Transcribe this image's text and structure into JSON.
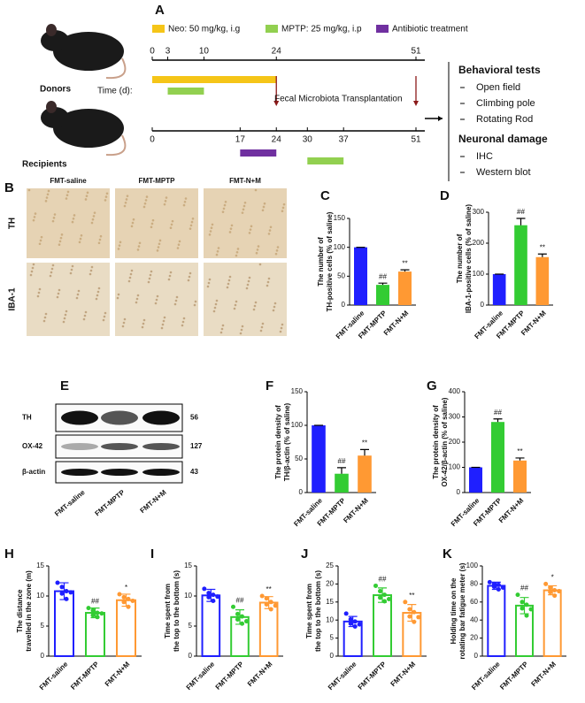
{
  "panel_letters": [
    "A",
    "B",
    "C",
    "D",
    "E",
    "F",
    "G",
    "H",
    "I",
    "J",
    "K"
  ],
  "timeline": {
    "legend": [
      {
        "label": "Neo: 50 mg/kg, i.g",
        "color": "#f5c518"
      },
      {
        "label": "MPTP: 25 mg/kg, i.p",
        "color": "#92d050"
      },
      {
        "label": "Antibiotic treatment",
        "color": "#7030a0"
      }
    ],
    "range": [
      0,
      51
    ],
    "time_label": "Time (d):",
    "groups": [
      {
        "name": "Donors",
        "ticks": [
          0,
          3,
          10,
          24,
          51
        ],
        "treatments": [
          {
            "legend": 0,
            "start": 0,
            "end": 24
          },
          {
            "legend": 1,
            "start": 3,
            "end": 10
          }
        ]
      },
      {
        "name": "Recipients",
        "ticks": [
          0,
          17,
          24,
          30,
          37,
          51
        ],
        "treatments": [
          {
            "legend": 2,
            "start": 17,
            "end": 24
          },
          {
            "legend": 1,
            "start": 30,
            "end": 37
          }
        ]
      }
    ],
    "transfer_label": "Fecal Microbiota Transplantation",
    "outcomes": [
      {
        "heading": "Behavioral tests",
        "items": [
          "Open field",
          "Climbing pole",
          "Rotating Rod"
        ]
      },
      {
        "heading": "Neuronal damage",
        "items": [
          "IHC",
          "Western blot"
        ]
      }
    ]
  },
  "staining": {
    "columns": [
      "FMT-saline",
      "FMT-MPTP",
      "FMT-N+M"
    ],
    "rows": [
      "TH",
      "IBA-1"
    ]
  },
  "blot": {
    "rows": [
      {
        "name": "TH",
        "kda": 56
      },
      {
        "name": "OX-42",
        "kda": 127
      },
      {
        "name": "β-actin",
        "kda": 43
      }
    ],
    "lanes": [
      "FMT-saline",
      "FMT-MPTP",
      "FMT-N+M"
    ]
  },
  "chart_data": [
    {
      "type": "bar",
      "style": "solid",
      "ylabel": [
        "The number of",
        "TH-positive cells (% of saline)"
      ],
      "categories": [
        "FMT-saline",
        "FMT-MPTP",
        "FMT-N+M"
      ],
      "colors": [
        "#1f1fff",
        "#33cc33",
        "#ff9933"
      ],
      "values": [
        100,
        35,
        58
      ],
      "errors": [
        0,
        3,
        3
      ],
      "annotations": [
        null,
        "##",
        "**"
      ],
      "ylim": [
        0,
        150
      ],
      "yticks": [
        0,
        50,
        100,
        150
      ]
    },
    {
      "type": "bar",
      "style": "solid",
      "ylabel": [
        "The number of",
        "IBA-1-positive cells (% of saline)"
      ],
      "categories": [
        "FMT-saline",
        "FMT-MPTP",
        "FMT-N+M"
      ],
      "colors": [
        "#1f1fff",
        "#33cc33",
        "#ff9933"
      ],
      "values": [
        100,
        258,
        155
      ],
      "errors": [
        0,
        22,
        10
      ],
      "annotations": [
        null,
        "##",
        "**"
      ],
      "ylim": [
        0,
        300
      ],
      "yticks": [
        0,
        100,
        200,
        300
      ]
    },
    {
      "type": "bar",
      "style": "solid",
      "ylabel": [
        "The protein density of",
        "TH/β-actin (% of saline)"
      ],
      "categories": [
        "FMT-saline",
        "FMT-MPTP",
        "FMT-N+M"
      ],
      "colors": [
        "#1f1fff",
        "#33cc33",
        "#ff9933"
      ],
      "values": [
        100,
        28,
        55
      ],
      "errors": [
        0,
        9,
        9
      ],
      "annotations": [
        null,
        "##",
        "**"
      ],
      "ylim": [
        0,
        150
      ],
      "yticks": [
        0,
        50,
        100,
        150
      ]
    },
    {
      "type": "bar",
      "style": "solid",
      "ylabel": [
        "The protein density of",
        "OX-42/β-actin (% of saline)"
      ],
      "categories": [
        "FMT-saline",
        "FMT-MPTP",
        "FMT-N+M"
      ],
      "colors": [
        "#1f1fff",
        "#33cc33",
        "#ff9933"
      ],
      "values": [
        100,
        280,
        127
      ],
      "errors": [
        0,
        12,
        10
      ],
      "annotations": [
        null,
        "##",
        "**"
      ],
      "ylim": [
        0,
        400
      ],
      "yticks": [
        0,
        100,
        200,
        300,
        400
      ]
    },
    {
      "type": "bar",
      "style": "open",
      "ylabel": [
        "The distance",
        "travelled in the zone (m)"
      ],
      "categories": [
        "FMT-saline",
        "FMT-MPTP",
        "FMT-N+M"
      ],
      "colors": [
        "#1f1fff",
        "#33cc33",
        "#ff9933"
      ],
      "values": [
        10.8,
        7.2,
        9.3
      ],
      "errors": [
        1.4,
        0.8,
        1.0
      ],
      "annotations": [
        null,
        "##",
        "*"
      ],
      "points": [
        [
          12.2,
          11.5,
          10.8,
          10.4,
          9.5,
          10.6
        ],
        [
          8.0,
          7.6,
          7.2,
          6.8,
          6.5,
          7.1
        ],
        [
          10.3,
          9.8,
          9.5,
          9.0,
          8.2,
          9.2
        ]
      ],
      "ylim": [
        0,
        15
      ],
      "yticks": [
        0,
        5,
        10,
        15
      ]
    },
    {
      "type": "bar",
      "style": "open",
      "ylabel": [
        "Time spent from",
        "the top to the bottom (s)"
      ],
      "categories": [
        "FMT-saline",
        "FMT-MPTP",
        "FMT-N+M"
      ],
      "colors": [
        "#1f1fff",
        "#33cc33",
        "#ff9933"
      ],
      "values": [
        10.1,
        6.5,
        8.9
      ],
      "errors": [
        1.0,
        1.2,
        1.0
      ],
      "annotations": [
        null,
        "##",
        "**"
      ],
      "points": [
        [
          11.2,
          10.5,
          10.2,
          9.8,
          9.2,
          9.9
        ],
        [
          8.2,
          7.0,
          6.6,
          6.1,
          5.4,
          5.8
        ],
        [
          10.0,
          9.6,
          9.0,
          8.6,
          7.8,
          8.4
        ]
      ],
      "ylim": [
        0,
        15
      ],
      "yticks": [
        0,
        5,
        10,
        15
      ]
    },
    {
      "type": "bar",
      "style": "open",
      "ylabel": [
        "Time spent from",
        "the top to the bottom (s)"
      ],
      "categories": [
        "FMT-saline",
        "FMT-MPTP",
        "FMT-N+M"
      ],
      "colors": [
        "#1f1fff",
        "#33cc33",
        "#ff9933"
      ],
      "values": [
        9.6,
        16.9,
        12
      ],
      "errors": [
        1.4,
        2.0,
        2.3
      ],
      "annotations": [
        null,
        "##",
        "**"
      ],
      "points": [
        [
          11.8,
          10.2,
          9.6,
          9.0,
          8.2,
          8.8
        ],
        [
          19.5,
          18.0,
          17.0,
          16.2,
          15.2,
          15.8
        ],
        [
          15.0,
          13.0,
          12.2,
          11.0,
          9.5,
          10.8
        ]
      ],
      "ylim": [
        0,
        25
      ],
      "yticks": [
        0,
        5,
        10,
        15,
        20,
        25
      ]
    },
    {
      "type": "bar",
      "style": "open",
      "ylabel": [
        "Holding time on the",
        "rotating bar fatigue meter (s)"
      ],
      "categories": [
        "FMT-saline",
        "FMT-MPTP",
        "FMT-N+M"
      ],
      "colors": [
        "#1f1fff",
        "#33cc33",
        "#ff9933"
      ],
      "values": [
        78,
        56,
        73
      ],
      "errors": [
        4,
        9,
        5
      ],
      "annotations": [
        null,
        "##",
        "*"
      ],
      "points": [
        [
          82,
          80,
          79,
          77,
          74,
          76
        ],
        [
          68,
          60,
          57,
          53,
          45,
          52
        ],
        [
          80,
          76,
          73,
          71,
          67,
          72
        ]
      ],
      "ylim": [
        0,
        100
      ],
      "yticks": [
        0,
        20,
        40,
        60,
        80,
        100
      ]
    }
  ]
}
